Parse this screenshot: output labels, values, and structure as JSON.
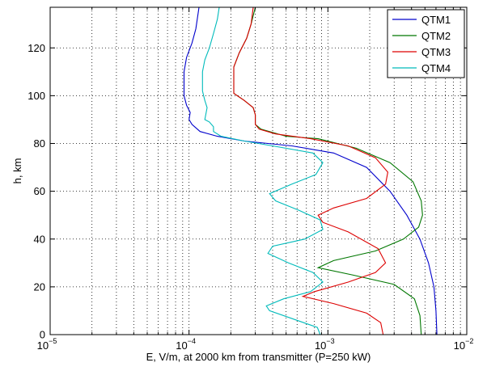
{
  "chart_data": {
    "type": "line",
    "title": "",
    "xlabel": "E, V/m, at 2000 km from transmitter (P=250 kW)",
    "ylabel": "h, km",
    "xscale": "log",
    "xlim": [
      1e-05,
      0.01
    ],
    "ylim": [
      0,
      137
    ],
    "grid": true,
    "legend_position": "top-right",
    "x_tick_labels": [
      {
        "base": "10",
        "exp": "−5"
      },
      {
        "base": "10",
        "exp": "−4"
      },
      {
        "base": "10",
        "exp": "−3"
      },
      {
        "base": "10",
        "exp": "−2"
      }
    ],
    "y_ticks": [
      0,
      20,
      40,
      60,
      80,
      100,
      120
    ],
    "series": [
      {
        "name": "QTM1",
        "color": "#0000cc",
        "points": [
          [
            0.0061,
            0
          ],
          [
            0.006,
            10
          ],
          [
            0.0058,
            20
          ],
          [
            0.0053,
            30
          ],
          [
            0.0046,
            40
          ],
          [
            0.0037,
            50
          ],
          [
            0.0028,
            60
          ],
          [
            0.0019,
            70
          ],
          [
            0.0011,
            76
          ],
          [
            0.00055,
            79
          ],
          [
            0.00025,
            81
          ],
          [
            0.00016,
            83
          ],
          [
            0.00012,
            85
          ],
          [
            0.000105,
            88
          ],
          [
            0.0001,
            90
          ],
          [
            0.000102,
            93
          ],
          [
            9.6e-05,
            96
          ],
          [
            9.2e-05,
            100
          ],
          [
            9.2e-05,
            110
          ],
          [
            9.6e-05,
            116
          ],
          [
            0.000105,
            122
          ],
          [
            0.000112,
            128
          ],
          [
            0.000118,
            137
          ]
        ]
      },
      {
        "name": "QTM2",
        "color": "#007700",
        "points": [
          [
            0.0047,
            0
          ],
          [
            0.0046,
            8
          ],
          [
            0.0042,
            15
          ],
          [
            0.003,
            21
          ],
          [
            0.0015,
            25
          ],
          [
            0.00085,
            28
          ],
          [
            0.0011,
            31
          ],
          [
            0.0022,
            35
          ],
          [
            0.0035,
            40
          ],
          [
            0.0045,
            45
          ],
          [
            0.0048,
            50
          ],
          [
            0.0047,
            56
          ],
          [
            0.0041,
            64
          ],
          [
            0.0028,
            72
          ],
          [
            0.0016,
            78
          ],
          [
            0.00085,
            82
          ],
          [
            0.0005,
            83
          ],
          [
            0.00033,
            86
          ],
          [
            0.0003,
            88
          ],
          [
            0.0003,
            92
          ],
          [
            0.00029,
            95
          ],
          [
            0.00025,
            98
          ],
          [
            0.00021,
            101
          ],
          [
            0.00021,
            112
          ],
          [
            0.00023,
            118
          ],
          [
            0.00026,
            124
          ],
          [
            0.00028,
            130
          ],
          [
            0.0003,
            137
          ]
        ]
      },
      {
        "name": "QTM3",
        "color": "#dd0000",
        "points": [
          [
            0.0025,
            0
          ],
          [
            0.0024,
            5
          ],
          [
            0.0019,
            9
          ],
          [
            0.0011,
            13
          ],
          [
            0.00066,
            16
          ],
          [
            0.0008,
            18
          ],
          [
            0.0014,
            22
          ],
          [
            0.0022,
            26
          ],
          [
            0.0026,
            30
          ],
          [
            0.0023,
            36
          ],
          [
            0.0014,
            43
          ],
          [
            0.00092,
            47
          ],
          [
            0.00085,
            50
          ],
          [
            0.0011,
            53
          ],
          [
            0.0019,
            57
          ],
          [
            0.0026,
            63
          ],
          [
            0.0027,
            68
          ],
          [
            0.0022,
            74
          ],
          [
            0.0014,
            79
          ],
          [
            0.00075,
            82
          ],
          [
            0.00042,
            84
          ],
          [
            0.00032,
            86
          ],
          [
            0.0003,
            88
          ],
          [
            0.0003,
            92
          ],
          [
            0.00029,
            95
          ],
          [
            0.00025,
            98
          ],
          [
            0.00021,
            101
          ],
          [
            0.00021,
            112
          ],
          [
            0.00023,
            118
          ],
          [
            0.00026,
            124
          ],
          [
            0.00028,
            130
          ],
          [
            0.00029,
            137
          ]
        ]
      },
      {
        "name": "QTM4",
        "color": "#00bbbb",
        "points": [
          [
            0.00088,
            0
          ],
          [
            0.00084,
            3
          ],
          [
            0.0006,
            6
          ],
          [
            0.00038,
            10
          ],
          [
            0.00036,
            12
          ],
          [
            0.00048,
            15
          ],
          [
            0.00075,
            18
          ],
          [
            0.00092,
            22
          ],
          [
            0.00078,
            26
          ],
          [
            0.00052,
            30
          ],
          [
            0.00037,
            34
          ],
          [
            0.0004,
            37
          ],
          [
            0.00068,
            40
          ],
          [
            0.00092,
            44
          ],
          [
            0.00088,
            48
          ],
          [
            0.00062,
            52
          ],
          [
            0.00042,
            56
          ],
          [
            0.00038,
            59
          ],
          [
            0.00055,
            63
          ],
          [
            0.00082,
            67
          ],
          [
            0.00092,
            72
          ],
          [
            0.00078,
            76
          ],
          [
            0.0004,
            79
          ],
          [
            0.00025,
            81
          ],
          [
            0.00017,
            83
          ],
          [
            0.00015,
            85
          ],
          [
            0.00015,
            87
          ],
          [
            0.00014,
            89
          ],
          [
            0.00013,
            90
          ],
          [
            0.000135,
            95
          ],
          [
            0.00013,
            98
          ],
          [
            0.000125,
            102
          ],
          [
            0.000125,
            110
          ],
          [
            0.00013,
            115
          ],
          [
            0.00014,
            120
          ],
          [
            0.00015,
            126
          ],
          [
            0.00016,
            132
          ],
          [
            0.000165,
            137
          ]
        ]
      }
    ]
  }
}
